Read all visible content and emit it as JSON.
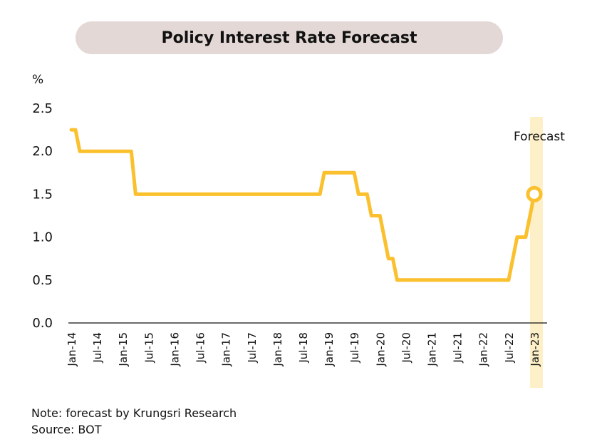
{
  "chart_data": {
    "type": "line",
    "title": "Policy Interest Rate Forecast",
    "ylabel": "%",
    "xlabel": "",
    "ylim": [
      0.0,
      2.5
    ],
    "yticks": [
      "0.0",
      "0.5",
      "1.0",
      "1.5",
      "2.0",
      "2.5"
    ],
    "xticks": [
      "Jan-14",
      "Jul-14",
      "Jan-15",
      "Jul-15",
      "Jan-16",
      "Jul-16",
      "Jan-17",
      "Jul-17",
      "Jan-18",
      "Jul-18",
      "Jan-19",
      "Jul-19",
      "Jan-20",
      "Jul-20",
      "Jan-21",
      "Jul-21",
      "Jan-22",
      "Jul-22",
      "Jan-23"
    ],
    "xlim": [
      "2014-01",
      "2023-03"
    ],
    "grid": false,
    "line_color": "#fbc02d",
    "forecast_band_color": "#fdf0c8",
    "series": [
      {
        "values": [
          {
            "x": "2014-01",
            "y": 2.25
          },
          {
            "x": "2014-02",
            "y": 2.25
          },
          {
            "x": "2014-03",
            "y": 2.0
          },
          {
            "x": "2015-03",
            "y": 2.0
          },
          {
            "x": "2015-04",
            "y": 1.5
          },
          {
            "x": "2018-11",
            "y": 1.5
          },
          {
            "x": "2018-12",
            "y": 1.75
          },
          {
            "x": "2019-07",
            "y": 1.75
          },
          {
            "x": "2019-08",
            "y": 1.5
          },
          {
            "x": "2019-10",
            "y": 1.5
          },
          {
            "x": "2019-11",
            "y": 1.25
          },
          {
            "x": "2020-01",
            "y": 1.25
          },
          {
            "x": "2020-02",
            "y": 1.0
          },
          {
            "x": "2020-03",
            "y": 0.75
          },
          {
            "x": "2020-04",
            "y": 0.75
          },
          {
            "x": "2020-05",
            "y": 0.5
          },
          {
            "x": "2022-07",
            "y": 0.5
          },
          {
            "x": "2022-09",
            "y": 1.0
          },
          {
            "x": "2022-11",
            "y": 1.0
          },
          {
            "x": "2023-01",
            "y": 1.5
          }
        ]
      }
    ],
    "forecast": {
      "label": "Forecast",
      "x_range": [
        "2022-12",
        "2023-03"
      ],
      "point": {
        "x": "2023-01",
        "y": 1.5
      }
    }
  },
  "notes": {
    "note": "Note: forecast by Krungsri Research",
    "source": "Source: BOT"
  }
}
